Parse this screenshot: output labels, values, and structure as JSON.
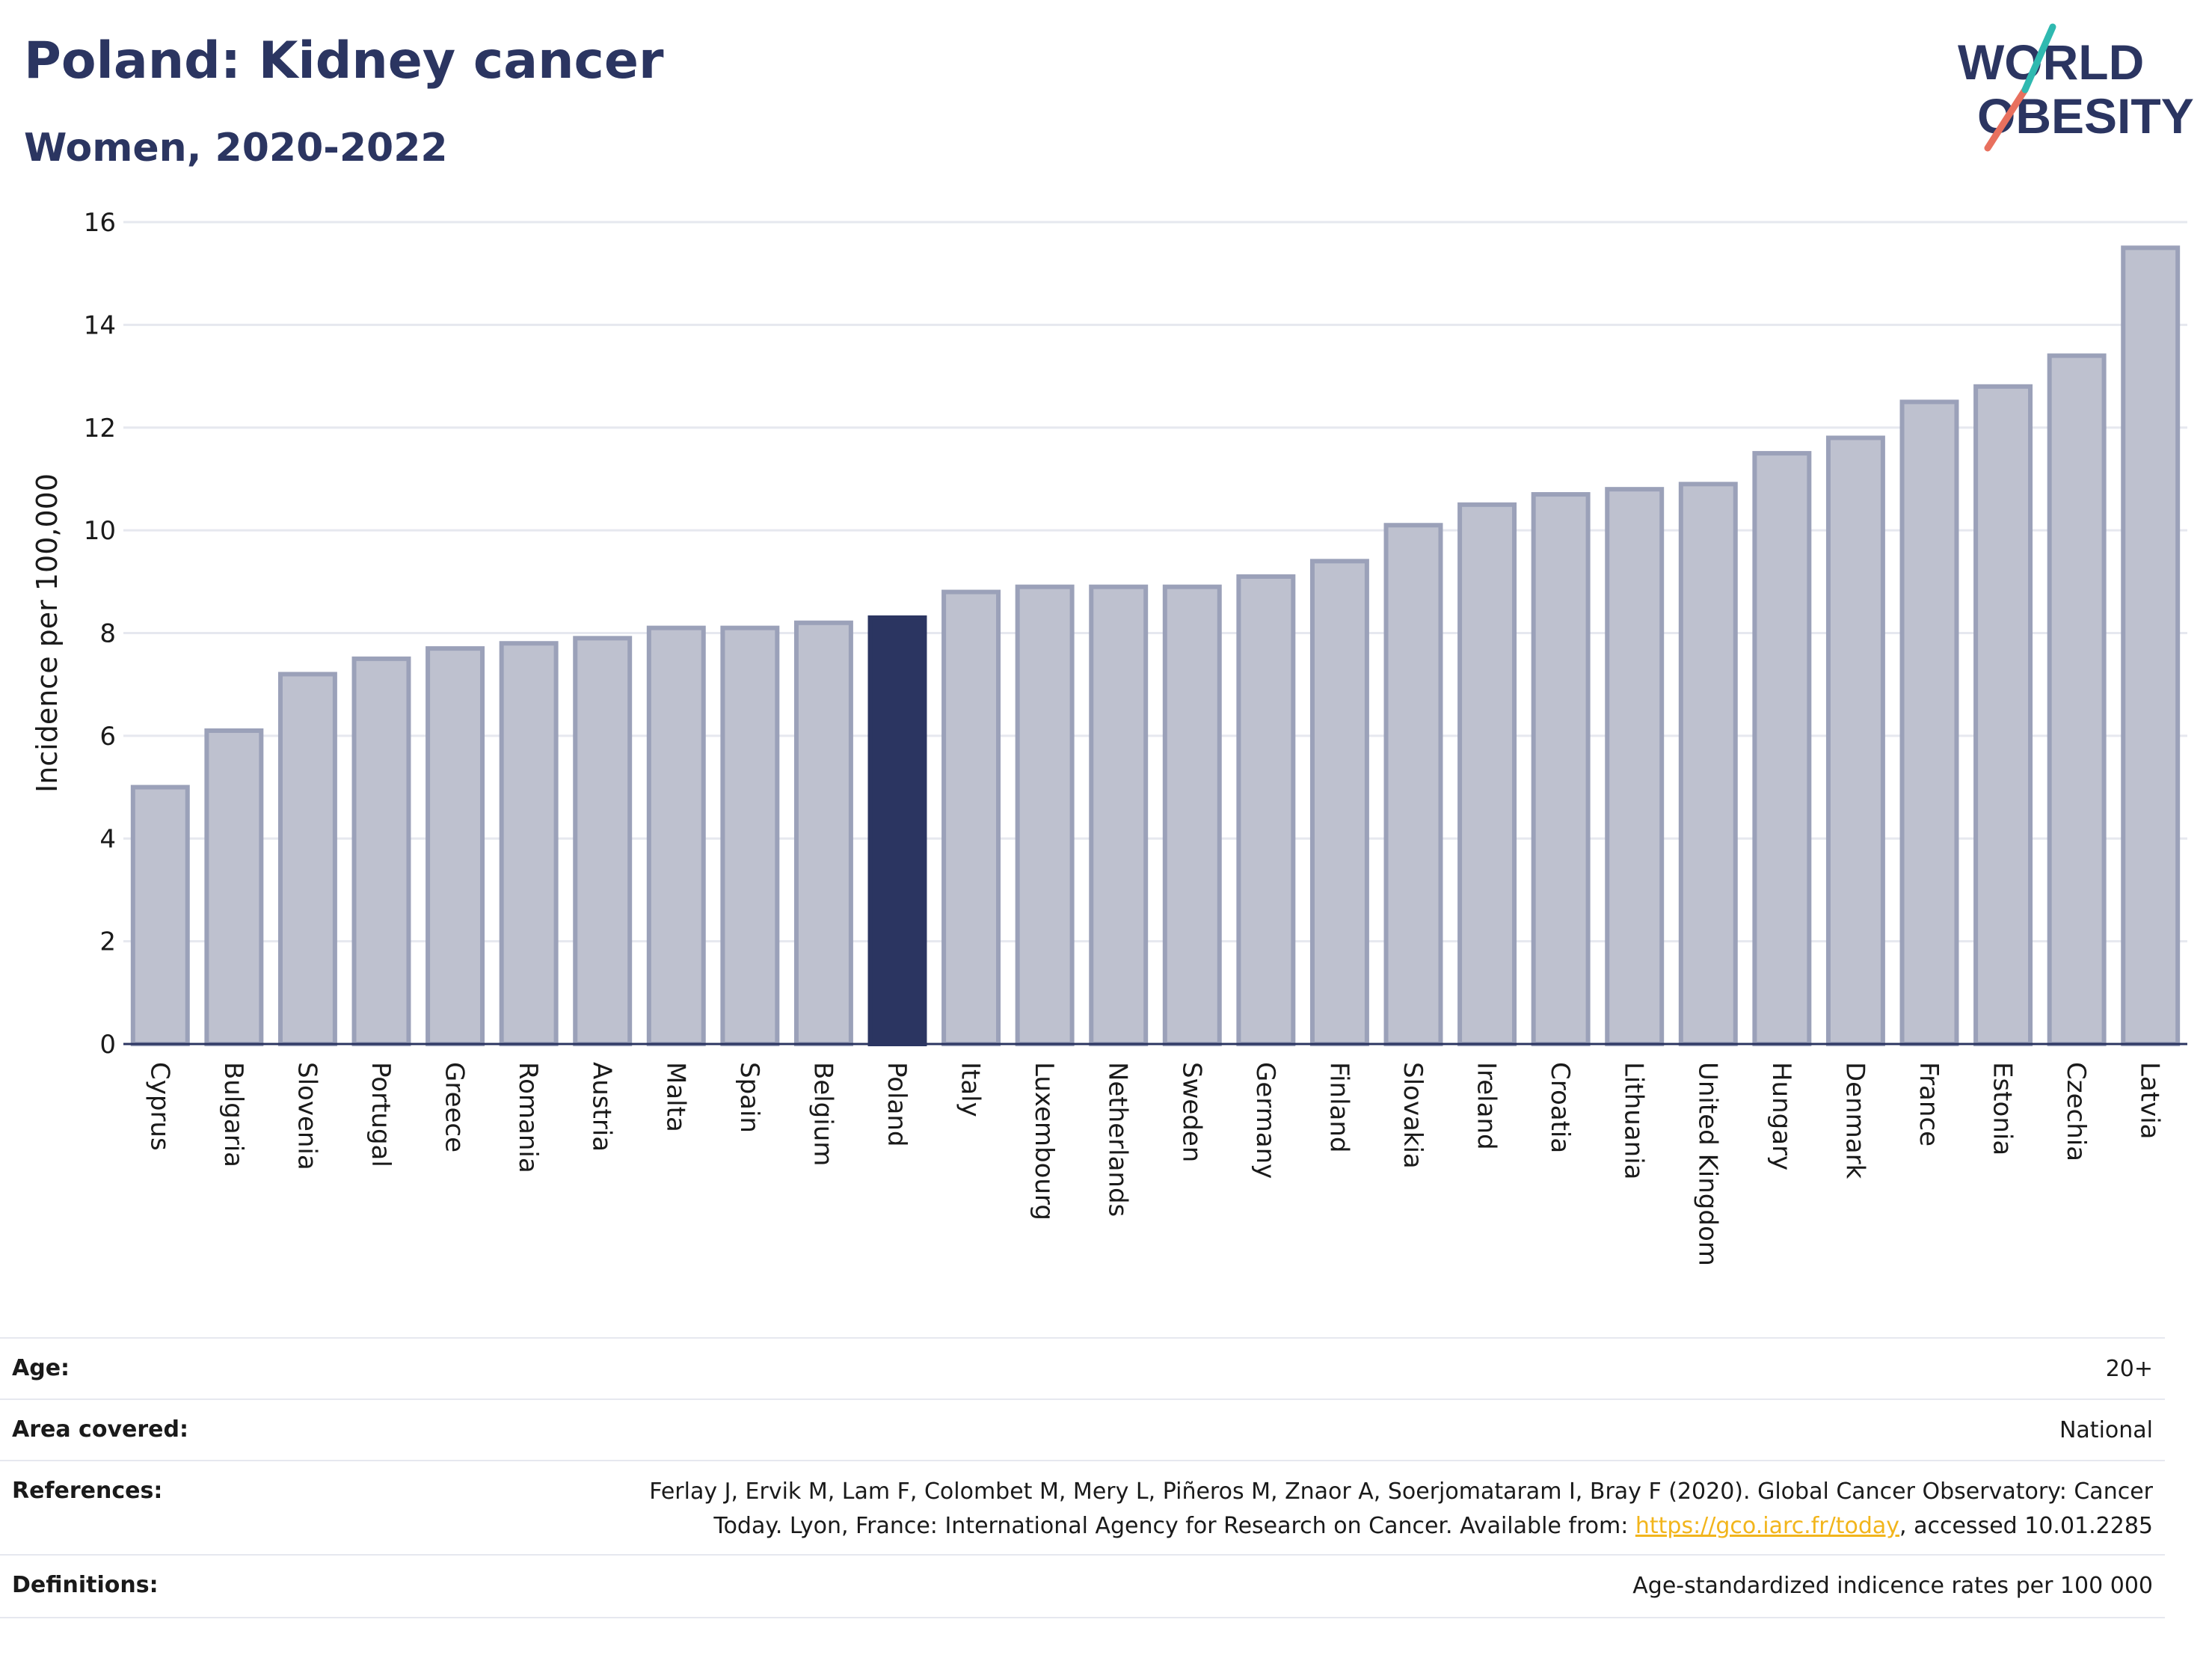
{
  "title": "Poland: Kidney cancer",
  "subtitle": "Women, 2020-2022",
  "logo": {
    "line1": "WORLD",
    "line2": "OBESITY"
  },
  "colors": {
    "highlight": "#2b3561",
    "bar": "#bec1cf",
    "bar_stroke": "#9ba1b9",
    "grid": "#e6e8ef",
    "accent_teal": "#2fb9b0",
    "accent_coral": "#e8705e"
  },
  "chart_data": {
    "type": "bar",
    "ylabel": "Incidence per 100,000",
    "xlabel": "",
    "ylim": [
      0,
      16
    ],
    "yticks": [
      0,
      2,
      4,
      6,
      8,
      10,
      12,
      14,
      16
    ],
    "grid": true,
    "highlight": "Poland",
    "categories": [
      "Cyprus",
      "Bulgaria",
      "Slovenia",
      "Portugal",
      "Greece",
      "Romania",
      "Austria",
      "Malta",
      "Spain",
      "Belgium",
      "Poland",
      "Italy",
      "Luxembourg",
      "Netherlands",
      "Sweden",
      "Germany",
      "Finland",
      "Slovakia",
      "Ireland",
      "Croatia",
      "Lithuania",
      "United Kingdom",
      "Hungary",
      "Denmark",
      "France",
      "Estonia",
      "Czechia",
      "Latvia"
    ],
    "values": [
      5.0,
      6.1,
      7.2,
      7.5,
      7.7,
      7.8,
      7.9,
      8.1,
      8.1,
      8.2,
      8.3,
      8.8,
      8.9,
      8.9,
      8.9,
      9.1,
      9.4,
      10.1,
      10.5,
      10.7,
      10.8,
      10.9,
      11.5,
      11.8,
      12.5,
      12.8,
      13.4,
      15.5
    ]
  },
  "meta": {
    "age_label": "Age:",
    "age_value": "20+",
    "area_label": "Area covered:",
    "area_value": "National",
    "references_label": "References:",
    "references_line1": "Ferlay J, Ervik M, Lam F, Colombet M, Mery L, Piñeros M, Znaor A, Soerjomataram I, Bray F (2020). Global Cancer Observatory: Cancer",
    "references_line2_pre": "Today. Lyon, France: International Agency for Research on Cancer. Available from: ",
    "references_link": "https://gco.iarc.fr/today",
    "references_line2_post": ", accessed 10.01.2285",
    "definitions_label": "Definitions:",
    "definitions_value": "Age-standardized indicence rates per 100 000"
  }
}
